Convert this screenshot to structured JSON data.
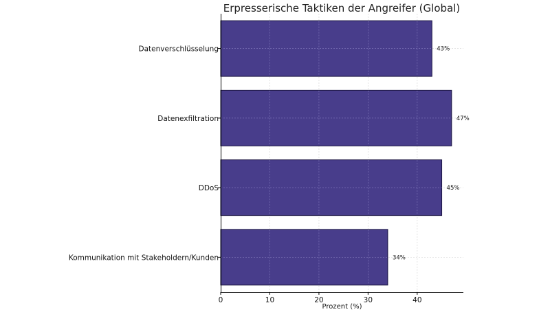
{
  "chart_data": {
    "type": "bar",
    "orientation": "horizontal",
    "title": "Erpresserische Taktiken der Angreifer (Global)",
    "categories": [
      "Datenverschlüsselung",
      "Datenexfiltration",
      "DDoS",
      "Kommunikation mit Stakeholdern/Kunden"
    ],
    "values": [
      43,
      47,
      45,
      34
    ],
    "data_labels": [
      "43%",
      "47%",
      "45%",
      "34%"
    ],
    "xlabel": "Prozent (%)",
    "ylabel": "",
    "xlim": [
      0,
      49.4
    ],
    "xticks": [
      0,
      10,
      20,
      30,
      40
    ],
    "grid": true,
    "bar_color": "#483d8b",
    "bar_edge_color": "#1a1440"
  }
}
